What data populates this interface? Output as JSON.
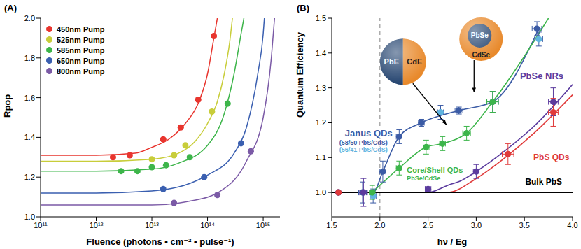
{
  "chart_data": [
    {
      "type": "scatter",
      "panel_label": "(A)",
      "x_label": "Fluence (photons • cm⁻² • pulse⁻¹)",
      "y_label": "Rpop",
      "log": "x",
      "legend": "top-left",
      "marker": "circle",
      "xlim": [
        100000000000.0,
        2000000000000000.0
      ],
      "xticks": [
        {
          "value": 100000000000.0,
          "label": "10¹¹"
        },
        {
          "value": 1000000000000.0,
          "label": "10¹²"
        },
        {
          "value": 10000000000000.0,
          "label": "10¹³"
        },
        {
          "value": 100000000000000.0,
          "label": "10¹⁴"
        },
        {
          "value": 1000000000000000.0,
          "label": "10¹⁵"
        }
      ],
      "ylim": [
        1,
        2
      ],
      "yticks": [
        {
          "value": 1,
          "label": "1.0"
        },
        1.2,
        1.4,
        1.6,
        1.8,
        {
          "value": 2,
          "label": "2.0"
        }
      ],
      "series": [
        {
          "name": "450nm Pump",
          "color": "#e8352e",
          "x": [
            2000000000000.0,
            4000000000000.0,
            16000000000000.0,
            33000000000000.0,
            68000000000000.0,
            130000000000000.0
          ],
          "values": [
            1.3,
            1.31,
            1.39,
            1.45,
            1.59,
            1.91
          ],
          "fit_x": [
            100000000000.0,
            1000000000000.0,
            5000000000000.0,
            10000000000000.0,
            20000000000000.0,
            40000000000000.0,
            70000000000000.0,
            100000000000000.0,
            130000000000000.0,
            150000000000000.0
          ],
          "fit_values": [
            1.31,
            1.31,
            1.32,
            1.35,
            1.39,
            1.47,
            1.58,
            1.72,
            1.9,
            2.0
          ]
        },
        {
          "name": "525nm Pump",
          "color": "#c8cd3a",
          "x": [
            10000000000000.0,
            25000000000000.0,
            40000000000000.0,
            120000000000000.0
          ],
          "values": [
            1.29,
            1.31,
            1.36,
            1.53
          ],
          "fit_x": [
            100000000000.0,
            1000000000000.0,
            10000000000000.0,
            30000000000000.0,
            60000000000000.0,
            100000000000000.0,
            150000000000000.0,
            200000000000000.0,
            250000000000000.0,
            280000000000000.0
          ],
          "fit_values": [
            1.28,
            1.28,
            1.29,
            1.32,
            1.38,
            1.47,
            1.58,
            1.72,
            1.88,
            2.0
          ]
        },
        {
          "name": "585nm Pump",
          "color": "#3db54a",
          "x": [
            2800000000000.0,
            5500000000000.0,
            10000000000000.0,
            18000000000000.0,
            48000000000000.0,
            230000000000000.0
          ],
          "values": [
            1.23,
            1.23,
            1.25,
            1.26,
            1.3,
            1.57
          ],
          "fit_x": [
            100000000000.0,
            1000000000000.0,
            10000000000000.0,
            30000000000000.0,
            100000000000000.0,
            200000000000000.0,
            300000000000000.0,
            400000000000000.0,
            450000000000000.0
          ],
          "fit_values": [
            1.23,
            1.23,
            1.24,
            1.27,
            1.36,
            1.52,
            1.72,
            1.92,
            2.0
          ]
        },
        {
          "name": "650nm Pump",
          "color": "#3a5fb0",
          "x": [
            16000000000000.0,
            87000000000000.0,
            400000000000000.0
          ],
          "values": [
            1.14,
            1.2,
            1.37
          ],
          "fit_x": [
            100000000000.0,
            1000000000000.0,
            10000000000000.0,
            50000000000000.0,
            100000000000000.0,
            300000000000000.0,
            500000000000000.0,
            800000000000000.0,
            1000000000000000.0,
            1050000000000000.0
          ],
          "fit_values": [
            1.12,
            1.12,
            1.13,
            1.17,
            1.21,
            1.32,
            1.45,
            1.72,
            1.92,
            2.0
          ]
        },
        {
          "name": "800nm Pump",
          "color": "#7b5aa6",
          "x": [
            25000000000000.0,
            150000000000000.0,
            600000000000000.0
          ],
          "values": [
            1.07,
            1.11,
            1.33
          ],
          "fit_x": [
            100000000000.0,
            1000000000000.0,
            10000000000000.0,
            50000000000000.0,
            150000000000000.0,
            500000000000000.0,
            1000000000000000.0,
            1400000000000000.0,
            1600000000000000.0
          ],
          "fit_values": [
            1.06,
            1.06,
            1.06,
            1.08,
            1.12,
            1.28,
            1.5,
            1.8,
            2.0
          ]
        }
      ]
    },
    {
      "type": "scatter",
      "panel_label": "(B)",
      "x_label": "hν / Eg",
      "y_label": "Quantum Efficiency",
      "marker": "circle",
      "xlim": [
        1.5,
        4
      ],
      "xticks": [
        1.5,
        {
          "value": 2,
          "label": "2.0"
        },
        2.5,
        {
          "value": 3,
          "label": "3.0"
        },
        3.5,
        {
          "value": 4,
          "label": "4.0"
        }
      ],
      "ylim": [
        0.93,
        1.5
      ],
      "yticks": [
        {
          "value": 1,
          "label": "1.0"
        },
        1.1,
        1.2,
        1.3,
        1.4,
        1.5
      ],
      "vlines": [
        {
          "x": 2,
          "color": "#9a9a9a",
          "line_style": "dashed"
        }
      ],
      "series": [
        {
          "name": "Janus QDs",
          "color": "#3b5ba5",
          "x": [
            1.57,
            1.82,
            1.93,
            2.03,
            2.2,
            2.43,
            2.63,
            2.82,
            3.17,
            3.63,
            3.65
          ],
          "values": [
            1.0,
            1.0,
            0.99,
            1.06,
            1.16,
            1.2,
            1.23,
            1.235,
            1.26,
            1.47,
            1.44
          ],
          "colors": [
            "#3b5ba5",
            "#3b5ba5",
            "#5fb4e0",
            "#3b5ba5",
            "#3b5ba5",
            "#3b5ba5",
            "#5fb4e0",
            "#3b5ba5",
            "#3b5ba5",
            "#3b5ba5",
            "#5fb4e0"
          ],
          "x_err": [
            null,
            0.04,
            0.03,
            0.03,
            0.03,
            0.03,
            0.03,
            0.04,
            0.06,
            0.05,
            0.04
          ],
          "y_err": [
            null,
            0.03,
            0.02,
            0.03,
            0.02,
            0.01,
            0.02,
            0.01,
            0.03,
            0.02,
            0.02
          ],
          "fit_x": [
            1.57,
            1.82,
            1.93,
            2.03,
            2.2,
            2.43,
            2.82,
            3.17,
            3.65
          ],
          "fit_values": [
            1.0,
            1.0,
            1.0,
            1.06,
            1.16,
            1.2,
            1.235,
            1.26,
            1.47
          ]
        },
        {
          "name": "Core/Shell QDs",
          "color": "#3cb54a",
          "x": [
            1.92,
            2.2,
            2.48,
            2.65,
            2.9,
            3.17
          ],
          "values": [
            1.0,
            1.07,
            1.13,
            1.14,
            1.17,
            1.26
          ],
          "x_err": [
            0.03,
            0.03,
            0.03,
            0.03,
            0.04,
            0.06
          ],
          "y_err": [
            0.02,
            0.02,
            0.02,
            0.02,
            0.02,
            0.03
          ],
          "fit_x": [
            1.92,
            2.2,
            2.48,
            2.65,
            2.9,
            3.17,
            3.75
          ],
          "fit_values": [
            1.0,
            1.07,
            1.13,
            1.14,
            1.17,
            1.26,
            1.5
          ]
        },
        {
          "name": "PbSe NRs",
          "color": "#5b3b9e",
          "x": [
            1.57,
            1.83,
            2.5,
            3.0,
            3.8
          ],
          "values": [
            1.0,
            1.0,
            1.01,
            1.06,
            1.26
          ],
          "x_err": [
            null,
            0.04,
            0.03,
            0.03,
            0.05
          ],
          "y_err": [
            null,
            0.04,
            null,
            0.02,
            0.04
          ],
          "fit_x": [
            1.5,
            2.0,
            2.5,
            2.7,
            2.85,
            3.0,
            3.3,
            3.6,
            4.0
          ],
          "fit_values": [
            1.0,
            1.0,
            1.0,
            1.02,
            1.035,
            1.06,
            1.12,
            1.19,
            1.31
          ]
        },
        {
          "name": "PbS QDs",
          "color": "#e03a3a",
          "x": [
            1.57,
            3.33,
            3.8
          ],
          "values": [
            1.0,
            1.11,
            1.23
          ],
          "x_err": [
            null,
            0.06,
            0.05
          ],
          "y_err": [
            null,
            0.03,
            0.04
          ],
          "fit_x": [
            1.5,
            2.0,
            2.5,
            2.7,
            3.0,
            3.3,
            3.6,
            4.0
          ],
          "fit_values": [
            1.0,
            1.0,
            1.0,
            1.0,
            1.04,
            1.1,
            1.17,
            1.28
          ]
        },
        {
          "name": "Bulk PbS",
          "color": "#000000",
          "x": [],
          "values": [],
          "fit_x": [
            1.5,
            4.0
          ],
          "fit_values": [
            1.0,
            1.0
          ]
        }
      ],
      "annotations": [
        {
          "text": "(58/50 PbS/CdS)",
          "color": "#3b5ba5"
        },
        {
          "text": "(56/41 PbS/CdS)",
          "color": "#5fb4e0"
        },
        {
          "text": "PbSe/CdSe",
          "color": "#3cb54a"
        }
      ],
      "insets": [
        {
          "labels": [
            "PbE",
            "CdE"
          ],
          "colors": [
            "#22426e",
            "#e8892b"
          ]
        },
        {
          "labels": [
            "PbSe",
            "CdSe"
          ],
          "colors": [
            "#22426e",
            "#e8892b"
          ]
        }
      ]
    }
  ]
}
